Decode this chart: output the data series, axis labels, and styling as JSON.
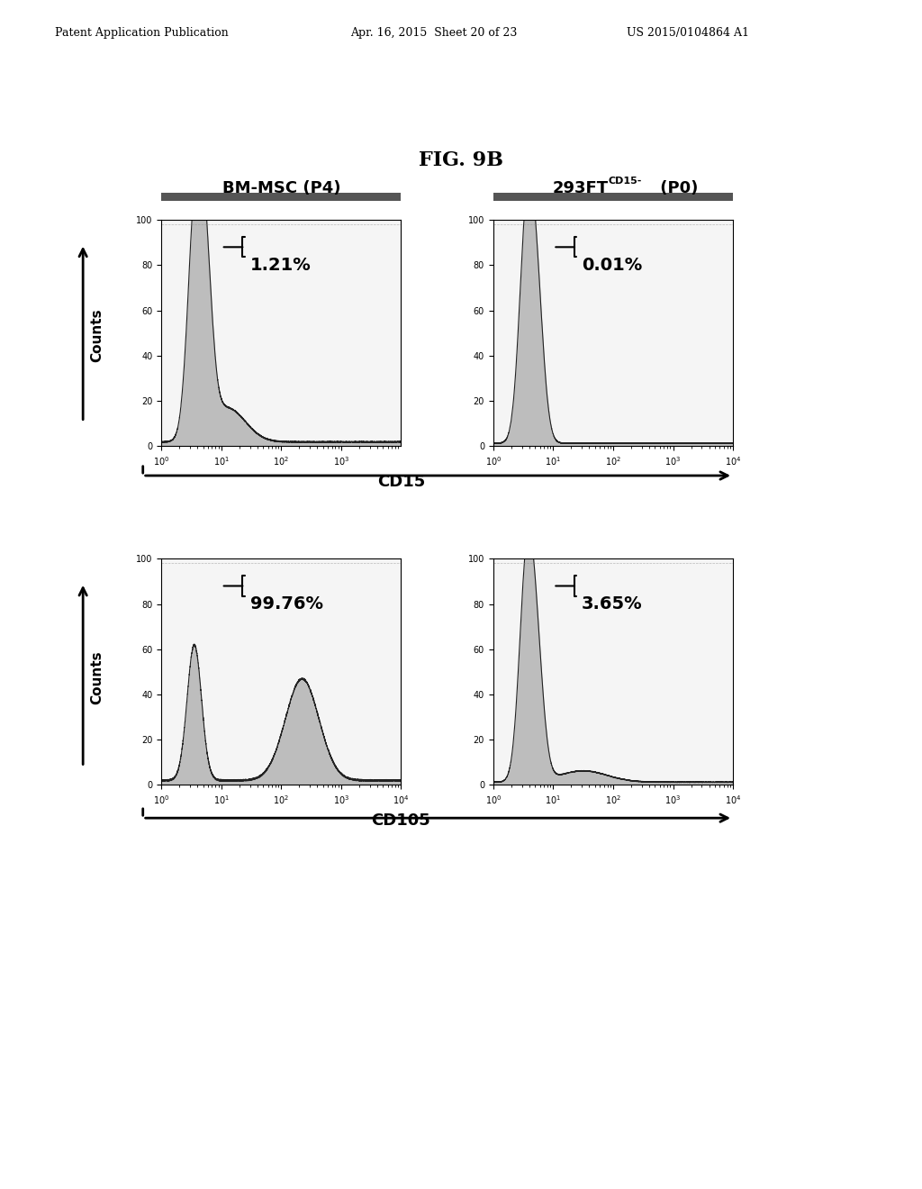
{
  "fig_title": "FIG. 9B",
  "patent_header_left": "Patent Application Publication",
  "patent_header_mid": "Apr. 16, 2015  Sheet 20 of 23",
  "patent_header_right": "US 2015/0104864 A1",
  "col1_title": "BM-MSC (P4)",
  "col2_title_main": "293FT",
  "col2_title_sup": "CD15-",
  "col2_title_end": " (P0)",
  "row_labels": [
    "CD15",
    "CD105"
  ],
  "counts_label": "Counts",
  "percentages": [
    [
      "1.21%",
      "0.01%"
    ],
    [
      "99.76%",
      "3.65%"
    ]
  ],
  "bg_color": "#ffffff",
  "plot_bg": "#f5f5f5",
  "hist_fill": "#999999",
  "hist_outline": "#222222"
}
